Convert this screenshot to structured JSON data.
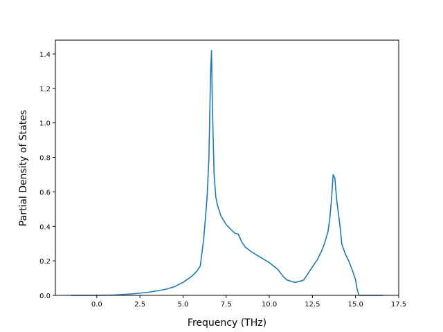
{
  "chart_data": {
    "type": "line",
    "title": "",
    "xlabel": "Frequency (THz)",
    "ylabel": "Partial Density of States",
    "xlim": [
      -2.4,
      17.5
    ],
    "ylim": [
      0.0,
      1.48
    ],
    "grid": false,
    "x_ticks": [
      0.0,
      2.5,
      5.0,
      7.5,
      10.0,
      12.5,
      15.0,
      17.5
    ],
    "x_tick_labels": [
      "0.0",
      "2.5",
      "5.0",
      "7.5",
      "10.0",
      "12.5",
      "15.0",
      "17.5"
    ],
    "y_ticks": [
      0.0,
      0.2,
      0.4,
      0.6,
      0.8,
      1.0,
      1.2,
      1.4
    ],
    "y_tick_labels": [
      "0.0",
      "0.2",
      "0.4",
      "0.6",
      "0.8",
      "1.0",
      "1.2",
      "1.4"
    ],
    "line_color": "#1f77b4",
    "series": [
      {
        "x": [
          -1.5,
          0.0,
          1.0,
          2.0,
          3.0,
          4.0,
          4.5,
          5.0,
          5.5,
          5.8,
          6.0,
          6.1,
          6.2,
          6.3,
          6.4,
          6.5,
          6.55,
          6.6,
          6.65,
          6.7,
          6.8,
          6.9,
          7.0,
          7.2,
          7.5,
          7.8,
          8.0,
          8.2,
          8.4,
          8.6,
          9.0,
          9.5,
          10.0,
          10.5,
          10.8,
          11.0,
          11.3,
          11.5,
          11.7,
          11.9,
          12.0,
          12.2,
          12.4,
          12.6,
          12.8,
          13.0,
          13.2,
          13.4,
          13.5,
          13.6,
          13.7,
          13.8,
          13.9,
          14.0,
          14.1,
          14.2,
          14.4,
          14.6,
          14.8,
          15.0,
          15.1,
          15.2,
          16.0,
          16.6
        ],
        "y": [
          0.0,
          0.0,
          0.002,
          0.008,
          0.018,
          0.035,
          0.05,
          0.075,
          0.11,
          0.14,
          0.17,
          0.25,
          0.33,
          0.45,
          0.58,
          0.8,
          1.05,
          1.3,
          1.42,
          1.1,
          0.7,
          0.57,
          0.52,
          0.46,
          0.41,
          0.38,
          0.36,
          0.355,
          0.31,
          0.28,
          0.25,
          0.22,
          0.19,
          0.15,
          0.11,
          0.09,
          0.08,
          0.075,
          0.08,
          0.085,
          0.09,
          0.12,
          0.15,
          0.18,
          0.21,
          0.25,
          0.3,
          0.37,
          0.44,
          0.55,
          0.7,
          0.68,
          0.56,
          0.48,
          0.4,
          0.3,
          0.24,
          0.2,
          0.15,
          0.09,
          0.03,
          0.0,
          0.0,
          0.0
        ]
      }
    ]
  }
}
